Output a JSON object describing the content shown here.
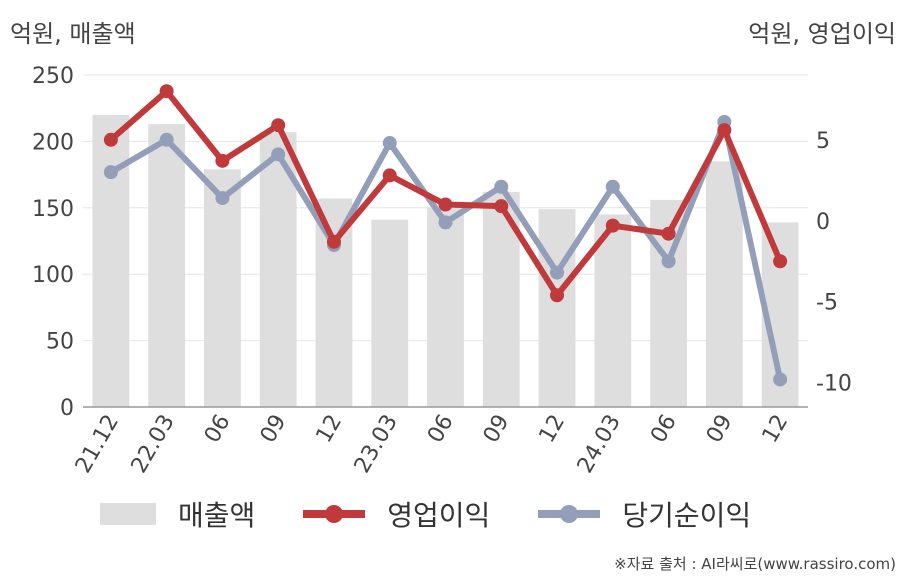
{
  "unit_left": "억원, 매출액",
  "unit_right": "억원, 영업이익",
  "source": "※자료 출처 : AI라씨로(www.rassiro.com)",
  "chart_data": {
    "type": "bar",
    "categories": [
      "21.12",
      "22.03",
      "06",
      "09",
      "12",
      "23.03",
      "06",
      "09",
      "12",
      "24.03",
      "06",
      "09",
      "12"
    ],
    "series": [
      {
        "name": "매출액",
        "type": "bar",
        "axis": "left",
        "color": "#dedede",
        "values": [
          220,
          213,
          179,
          207,
          157,
          141,
          150,
          162,
          149,
          145,
          156,
          185,
          139
        ]
      },
      {
        "name": "영업이익",
        "type": "line",
        "axis": "right",
        "color": "#c0393b",
        "values": [
          5.0,
          8.0,
          3.7,
          5.9,
          -1.3,
          2.8,
          1.0,
          0.9,
          -4.6,
          -0.3,
          -0.8,
          5.6,
          -2.5
        ]
      },
      {
        "name": "당기순이익",
        "type": "line",
        "axis": "right",
        "color": "#939fb9",
        "values": [
          3.0,
          5.0,
          1.4,
          4.1,
          -1.5,
          4.8,
          -0.1,
          2.1,
          -3.2,
          2.1,
          -2.5,
          6.1,
          -9.8
        ]
      }
    ],
    "y_left": {
      "min": 0,
      "max": 250,
      "ticks": [
        0,
        50,
        100,
        150,
        200,
        250
      ]
    },
    "y_right": {
      "min": -11.5,
      "max": 9.0,
      "ticks": [
        5,
        0,
        -5,
        -10
      ],
      "tick_labels": [
        "5",
        "0",
        "-5",
        "-10"
      ]
    },
    "grid": true,
    "legend_position": "bottom"
  }
}
